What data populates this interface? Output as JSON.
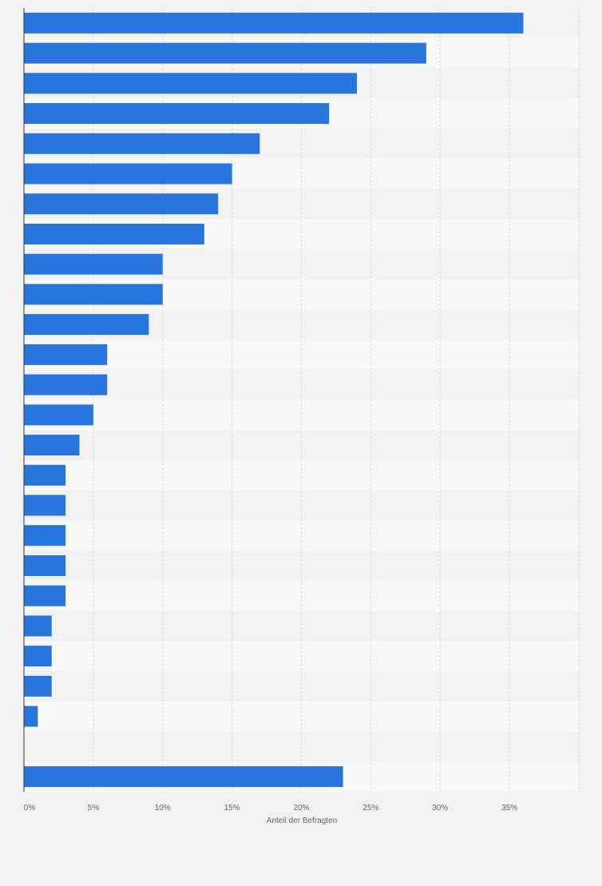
{
  "chart_data": {
    "type": "bar",
    "orientation": "horizontal",
    "categories": [
      "",
      "",
      "",
      "",
      "",
      "",
      "",
      "",
      "",
      "",
      "",
      "",
      "",
      "",
      "",
      "",
      "",
      "",
      "",
      "",
      "",
      "",
      "",
      "",
      "",
      ""
    ],
    "values": [
      36,
      29,
      24,
      22,
      17,
      15,
      14,
      13,
      10,
      10,
      9,
      6,
      6,
      5,
      4,
      3,
      3,
      3,
      3,
      3,
      2,
      2,
      2,
      1,
      null,
      23
    ],
    "title": "",
    "xlabel": "Anteil der Befragten",
    "ylabel": "",
    "xlim": [
      0,
      40
    ],
    "x_ticks": [
      0,
      5,
      10,
      15,
      20,
      25,
      30,
      35
    ],
    "x_tick_labels": [
      "0%",
      "5%",
      "10%",
      "15%",
      "20%",
      "25%",
      "30%",
      "35%"
    ],
    "grid": true,
    "legend": "none",
    "colors": {
      "bar": "#2876dd",
      "background": "#f2f2f2",
      "band_light": "#f8f8f8",
      "band_dark": "#f2f2f2",
      "grid": "#dcdcdc",
      "axis": "#333333",
      "text": "#666666"
    }
  }
}
